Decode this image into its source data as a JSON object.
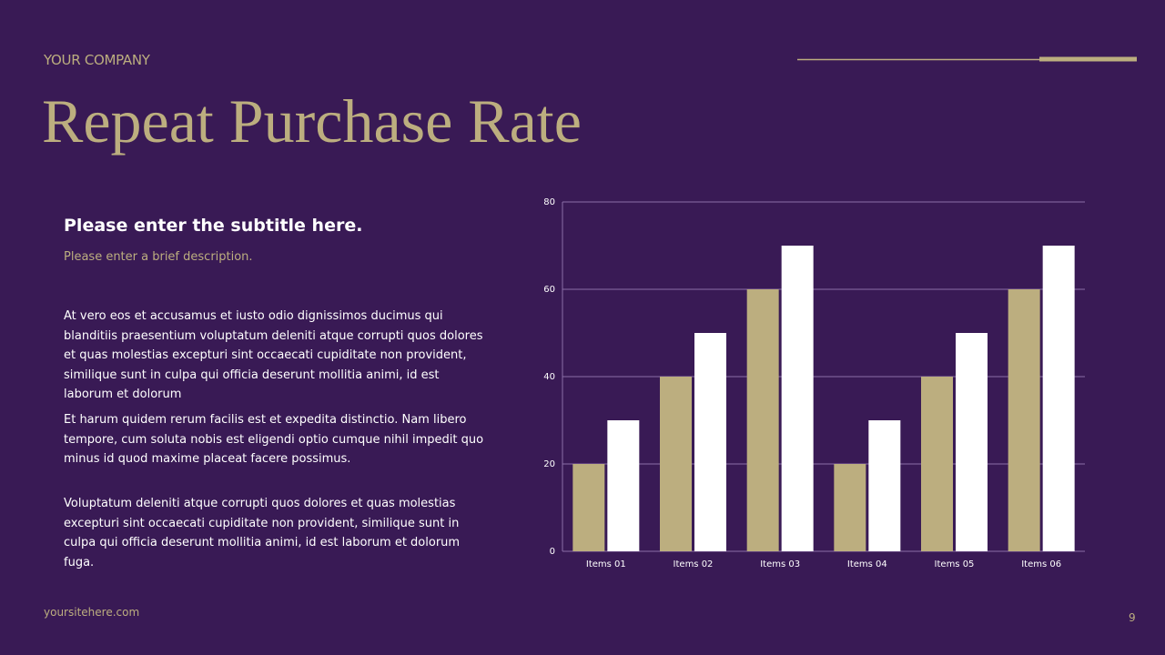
{
  "header": {
    "company": "YOUR COMPANY",
    "title": "Repeat Purchase Rate"
  },
  "content": {
    "subtitle": "Please enter the subtitle here.",
    "description": "Please enter a brief description.",
    "paragraphs": [
      "At vero eos et accusamus et iusto odio dignissimos ducimus qui blanditiis praesentium voluptatum deleniti atque corrupti quos dolores et quas molestias excepturi sint occaecati cupiditate non provident, similique sunt in culpa qui officia deserunt mollitia animi, id est laborum et dolorum",
      "Et harum quidem rerum facilis est et expedita distinctio. Nam libero tempore, cum soluta nobis est eligendi optio cumque nihil impedit quo minus id quod maxime placeat facere possimus.",
      "Voluptatum deleniti atque corrupti quos dolores et quas molestias excepturi sint occaecati cupiditate non provident, similique sunt in culpa qui officia deserunt mollitia animi, id est laborum et dolorum fuga."
    ]
  },
  "footer": {
    "website": "yoursitehere.com",
    "page_number": "9"
  },
  "chart_data": {
    "type": "bar",
    "categories": [
      "Items 01",
      "Items 02",
      "Items 03",
      "Items 04",
      "Items 05",
      "Items 06"
    ],
    "series": [
      {
        "color": "#bcae7f",
        "values": [
          20,
          40,
          60,
          20,
          40,
          60
        ]
      },
      {
        "color": "#ffffff",
        "values": [
          30,
          50,
          70,
          30,
          50,
          70
        ]
      }
    ],
    "ylim": [
      0,
      80
    ],
    "yticks": [
      0,
      20,
      40,
      60,
      80
    ],
    "grid": true
  }
}
